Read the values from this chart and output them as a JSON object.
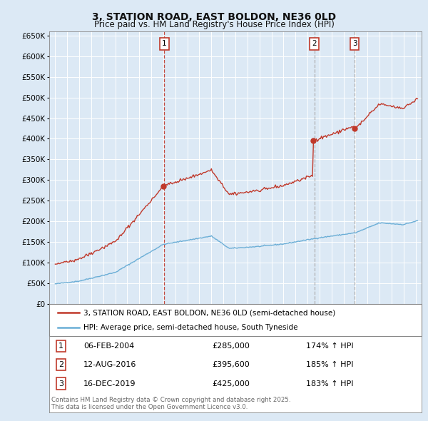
{
  "title": "3, STATION ROAD, EAST BOLDON, NE36 0LD",
  "subtitle": "Price paid vs. HM Land Registry's House Price Index (HPI)",
  "background_color": "#dce9f5",
  "plot_bg_color": "#dce9f5",
  "bottom_bg_color": "#ffffff",
  "ylim": [
    0,
    660000
  ],
  "yticks": [
    0,
    50000,
    100000,
    150000,
    200000,
    250000,
    300000,
    350000,
    400000,
    450000,
    500000,
    550000,
    600000,
    650000
  ],
  "legend1_label": "3, STATION ROAD, EAST BOLDON, NE36 0LD (semi-detached house)",
  "legend2_label": "HPI: Average price, semi-detached house, South Tyneside",
  "sale_prices": [
    285000,
    395600,
    425000
  ],
  "sale_labels": [
    "1",
    "2",
    "3"
  ],
  "sale_hpi_pct": [
    "174% ↑ HPI",
    "185% ↑ HPI",
    "183% ↑ HPI"
  ],
  "sale_date_labels": [
    "06-FEB-2004",
    "12-AUG-2016",
    "16-DEC-2019"
  ],
  "sale_price_labels": [
    "£285,000",
    "£395,600",
    "£425,000"
  ],
  "footer": "Contains HM Land Registry data © Crown copyright and database right 2025.\nThis data is licensed under the Open Government Licence v3.0.",
  "line_color_hpi": "#6baed6",
  "line_color_paid": "#c0392b",
  "vline_color_sale1": "#c0392b",
  "vline_color_sale23": "#aaaaaa",
  "sale_years": [
    2004.083,
    2016.583,
    2019.917
  ],
  "hpi_start_year": 1995.0,
  "hpi_end_year": 2025.25,
  "xlim_left": 1994.5,
  "xlim_right": 2025.5
}
